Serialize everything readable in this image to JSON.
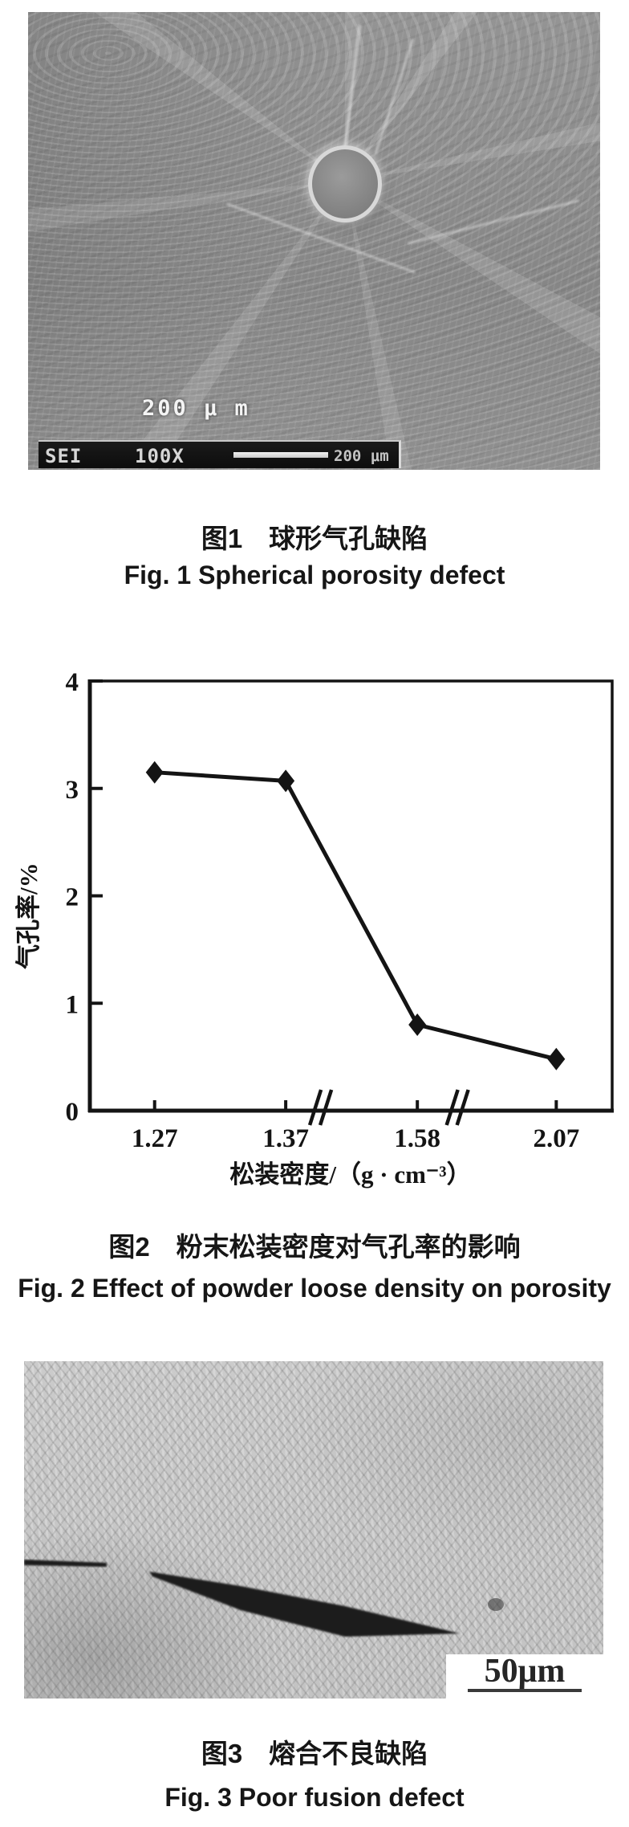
{
  "colors": {
    "ink": "#141414",
    "caption_text": "#161616",
    "sem_base_gray": "#8a8a8a",
    "micrograph_base_gray": "#c8c8c8",
    "sem_bar_background": "#0f0f0f",
    "sem_bar_text": "#d6d6d6"
  },
  "fig1": {
    "overlay_scale_text": "200 μ m",
    "bar": {
      "detector": "SEI",
      "magnification": "100X",
      "scale_label": "200 μm"
    },
    "caption_zh": "图1　球形气孔缺陷",
    "caption_en": "Fig. 1 Spherical porosity defect"
  },
  "fig2": {
    "caption_zh": "图2　粉末松装密度对气孔率的影响",
    "caption_en": "Fig. 2 Effect of powder loose density on porosity"
  },
  "fig3": {
    "scale_label": "50μm",
    "caption_zh": "图3　熔合不良缺陷",
    "caption_en": "Fig. 3 Poor fusion defect"
  },
  "chart_data": {
    "type": "line",
    "x": [
      1.27,
      1.37,
      1.58,
      2.07
    ],
    "values": [
      3.15,
      3.07,
      0.8,
      0.48
    ],
    "x_tick_labels": [
      "1.27",
      "1.37",
      "1.58",
      "2.07"
    ],
    "y_ticks": [
      0,
      1,
      2,
      3,
      4
    ],
    "y_tick_labels": [
      "0",
      "1",
      "2",
      "3",
      "4"
    ],
    "ylim": [
      0,
      4
    ],
    "xlabel": "松装密度/（g · cm⁻³）",
    "ylabel": "气孔率/%",
    "marker": "diamond",
    "line_color": "#141414",
    "axis_breaks_on_x_between": [
      [
        1.37,
        1.58
      ],
      [
        1.58,
        2.07
      ]
    ],
    "grid": false,
    "legend": null
  }
}
